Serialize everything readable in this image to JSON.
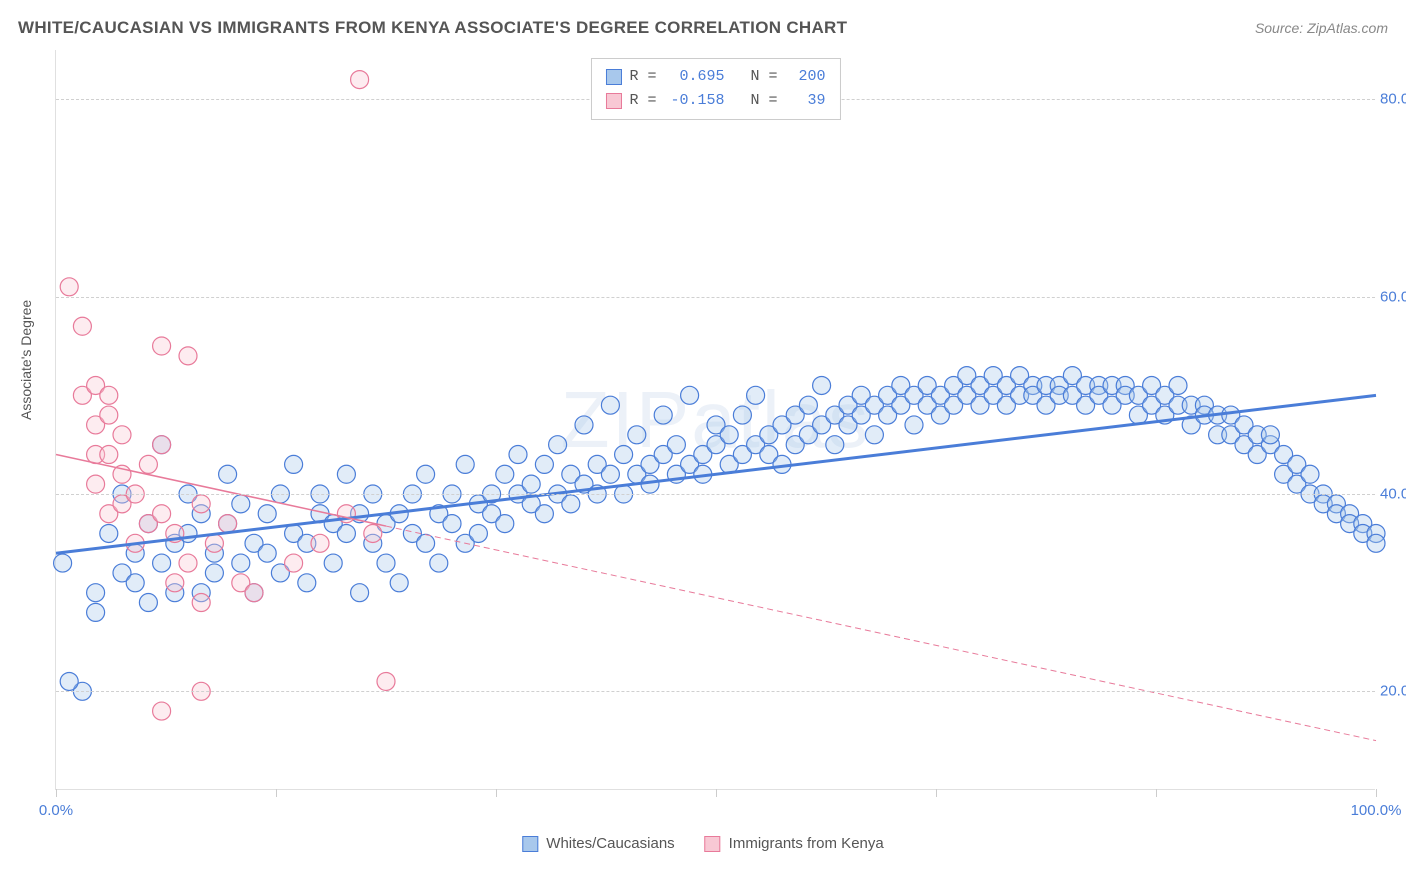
{
  "title": "WHITE/CAUCASIAN VS IMMIGRANTS FROM KENYA ASSOCIATE'S DEGREE CORRELATION CHART",
  "source": "Source: ZipAtlas.com",
  "y_axis_label": "Associate's Degree",
  "watermark": "ZIPatlas",
  "chart": {
    "type": "scatter",
    "xlim": [
      0,
      100
    ],
    "ylim": [
      10,
      85
    ],
    "x_ticks": [
      0,
      16.67,
      33.33,
      50,
      66.67,
      83.33,
      100
    ],
    "x_tick_labels": {
      "0": "0.0%",
      "100": "100.0%"
    },
    "y_ticks": [
      20,
      40,
      60,
      80
    ],
    "y_tick_labels": [
      "20.0%",
      "40.0%",
      "60.0%",
      "80.0%"
    ],
    "background_color": "#ffffff",
    "grid_color": "#d0d0d0",
    "grid_style": "dashed",
    "marker_radius": 9,
    "marker_stroke_width": 1.2,
    "marker_fill_opacity": 0.35
  },
  "series": [
    {
      "name": "Whites/Caucasians",
      "color": "#5b9bd5",
      "fill": "#a8c8ec",
      "stroke": "#4a7dd8",
      "R": "0.695",
      "N": "200",
      "trend": {
        "x1": 0,
        "y1": 34,
        "x2": 100,
        "y2": 50,
        "width": 3,
        "dash": "none"
      },
      "points": [
        [
          0.5,
          33
        ],
        [
          2,
          20
        ],
        [
          1,
          21
        ],
        [
          3,
          28
        ],
        [
          4,
          36
        ],
        [
          3,
          30
        ],
        [
          5,
          32
        ],
        [
          5,
          40
        ],
        [
          6,
          31
        ],
        [
          6,
          34
        ],
        [
          7,
          29
        ],
        [
          7,
          37
        ],
        [
          8,
          33
        ],
        [
          8,
          45
        ],
        [
          9,
          30
        ],
        [
          9,
          35
        ],
        [
          10,
          36
        ],
        [
          10,
          40
        ],
        [
          11,
          30
        ],
        [
          11,
          38
        ],
        [
          12,
          34
        ],
        [
          12,
          32
        ],
        [
          13,
          37
        ],
        [
          13,
          42
        ],
        [
          14,
          33
        ],
        [
          14,
          39
        ],
        [
          15,
          35
        ],
        [
          15,
          30
        ],
        [
          16,
          38
        ],
        [
          16,
          34
        ],
        [
          17,
          40
        ],
        [
          17,
          32
        ],
        [
          18,
          36
        ],
        [
          18,
          43
        ],
        [
          19,
          35
        ],
        [
          19,
          31
        ],
        [
          20,
          38
        ],
        [
          20,
          40
        ],
        [
          21,
          33
        ],
        [
          21,
          37
        ],
        [
          22,
          36
        ],
        [
          22,
          42
        ],
        [
          23,
          30
        ],
        [
          23,
          38
        ],
        [
          24,
          35
        ],
        [
          24,
          40
        ],
        [
          25,
          37
        ],
        [
          25,
          33
        ],
        [
          26,
          38
        ],
        [
          26,
          31
        ],
        [
          27,
          40
        ],
        [
          27,
          36
        ],
        [
          28,
          35
        ],
        [
          28,
          42
        ],
        [
          29,
          38
        ],
        [
          29,
          33
        ],
        [
          30,
          40
        ],
        [
          30,
          37
        ],
        [
          31,
          35
        ],
        [
          31,
          43
        ],
        [
          32,
          39
        ],
        [
          32,
          36
        ],
        [
          33,
          40
        ],
        [
          33,
          38
        ],
        [
          34,
          42
        ],
        [
          34,
          37
        ],
        [
          35,
          40
        ],
        [
          35,
          44
        ],
        [
          36,
          39
        ],
        [
          36,
          41
        ],
        [
          37,
          38
        ],
        [
          37,
          43
        ],
        [
          38,
          40
        ],
        [
          38,
          45
        ],
        [
          39,
          42
        ],
        [
          39,
          39
        ],
        [
          40,
          41
        ],
        [
          40,
          47
        ],
        [
          41,
          40
        ],
        [
          41,
          43
        ],
        [
          42,
          42
        ],
        [
          42,
          49
        ],
        [
          43,
          44
        ],
        [
          43,
          40
        ],
        [
          44,
          42
        ],
        [
          44,
          46
        ],
        [
          45,
          43
        ],
        [
          45,
          41
        ],
        [
          46,
          44
        ],
        [
          46,
          48
        ],
        [
          47,
          42
        ],
        [
          47,
          45
        ],
        [
          48,
          43
        ],
        [
          48,
          50
        ],
        [
          49,
          44
        ],
        [
          49,
          42
        ],
        [
          50,
          45
        ],
        [
          50,
          47
        ],
        [
          51,
          43
        ],
        [
          51,
          46
        ],
        [
          52,
          44
        ],
        [
          52,
          48
        ],
        [
          53,
          45
        ],
        [
          53,
          50
        ],
        [
          54,
          46
        ],
        [
          54,
          44
        ],
        [
          55,
          47
        ],
        [
          55,
          43
        ],
        [
          56,
          48
        ],
        [
          56,
          45
        ],
        [
          57,
          46
        ],
        [
          57,
          49
        ],
        [
          58,
          47
        ],
        [
          58,
          51
        ],
        [
          59,
          48
        ],
        [
          59,
          45
        ],
        [
          60,
          49
        ],
        [
          60,
          47
        ],
        [
          61,
          48
        ],
        [
          61,
          50
        ],
        [
          62,
          49
        ],
        [
          62,
          46
        ],
        [
          63,
          50
        ],
        [
          63,
          48
        ],
        [
          64,
          49
        ],
        [
          64,
          51
        ],
        [
          65,
          50
        ],
        [
          65,
          47
        ],
        [
          66,
          49
        ],
        [
          66,
          51
        ],
        [
          67,
          50
        ],
        [
          67,
          48
        ],
        [
          68,
          51
        ],
        [
          68,
          49
        ],
        [
          69,
          50
        ],
        [
          69,
          52
        ],
        [
          70,
          51
        ],
        [
          70,
          49
        ],
        [
          71,
          50
        ],
        [
          71,
          52
        ],
        [
          72,
          51
        ],
        [
          72,
          49
        ],
        [
          73,
          50
        ],
        [
          73,
          52
        ],
        [
          74,
          51
        ],
        [
          74,
          50
        ],
        [
          75,
          51
        ],
        [
          75,
          49
        ],
        [
          76,
          51
        ],
        [
          76,
          50
        ],
        [
          77,
          52
        ],
        [
          77,
          50
        ],
        [
          78,
          51
        ],
        [
          78,
          49
        ],
        [
          79,
          51
        ],
        [
          79,
          50
        ],
        [
          80,
          51
        ],
        [
          80,
          49
        ],
        [
          81,
          51
        ],
        [
          81,
          50
        ],
        [
          82,
          50
        ],
        [
          82,
          48
        ],
        [
          83,
          51
        ],
        [
          83,
          49
        ],
        [
          84,
          50
        ],
        [
          84,
          48
        ],
        [
          85,
          49
        ],
        [
          85,
          51
        ],
        [
          86,
          49
        ],
        [
          86,
          47
        ],
        [
          87,
          49
        ],
        [
          87,
          48
        ],
        [
          88,
          48
        ],
        [
          88,
          46
        ],
        [
          89,
          48
        ],
        [
          89,
          46
        ],
        [
          90,
          47
        ],
        [
          90,
          45
        ],
        [
          91,
          46
        ],
        [
          91,
          44
        ],
        [
          92,
          45
        ],
        [
          92,
          46
        ],
        [
          93,
          44
        ],
        [
          93,
          42
        ],
        [
          94,
          43
        ],
        [
          94,
          41
        ],
        [
          95,
          42
        ],
        [
          95,
          40
        ],
        [
          96,
          40
        ],
        [
          96,
          39
        ],
        [
          97,
          39
        ],
        [
          97,
          38
        ],
        [
          98,
          38
        ],
        [
          98,
          37
        ],
        [
          99,
          37
        ],
        [
          99,
          36
        ],
        [
          100,
          36
        ],
        [
          100,
          35
        ]
      ]
    },
    {
      "name": "Immigrants from Kenya",
      "color": "#f4a6b8",
      "fill": "#f8c8d4",
      "stroke": "#e87a9a",
      "R": "-0.158",
      "N": "39",
      "trend": {
        "x1": 0,
        "y1": 44,
        "x2": 100,
        "y2": 15,
        "width": 1.5,
        "dash": "6,4",
        "solid_until": 25
      },
      "points": [
        [
          1,
          61
        ],
        [
          2,
          50
        ],
        [
          2,
          57
        ],
        [
          3,
          47
        ],
        [
          3,
          51
        ],
        [
          3,
          44
        ],
        [
          3,
          41
        ],
        [
          4,
          48
        ],
        [
          4,
          38
        ],
        [
          4,
          50
        ],
        [
          4,
          44
        ],
        [
          5,
          42
        ],
        [
          5,
          46
        ],
        [
          5,
          39
        ],
        [
          6,
          40
        ],
        [
          6,
          35
        ],
        [
          7,
          43
        ],
        [
          7,
          37
        ],
        [
          8,
          38
        ],
        [
          8,
          45
        ],
        [
          8,
          55
        ],
        [
          9,
          36
        ],
        [
          9,
          31
        ],
        [
          10,
          33
        ],
        [
          10,
          54
        ],
        [
          11,
          29
        ],
        [
          11,
          39
        ],
        [
          12,
          35
        ],
        [
          13,
          37
        ],
        [
          14,
          31
        ],
        [
          15,
          30
        ],
        [
          18,
          33
        ],
        [
          20,
          35
        ],
        [
          22,
          38
        ],
        [
          23,
          82
        ],
        [
          24,
          36
        ],
        [
          25,
          21
        ],
        [
          8,
          18
        ],
        [
          11,
          20
        ]
      ]
    }
  ],
  "legend_bottom": [
    {
      "label": "Whites/Caucasians",
      "fill": "#a8c8ec",
      "stroke": "#4a7dd8"
    },
    {
      "label": "Immigrants from Kenya",
      "fill": "#f8c8d4",
      "stroke": "#e87a9a"
    }
  ]
}
